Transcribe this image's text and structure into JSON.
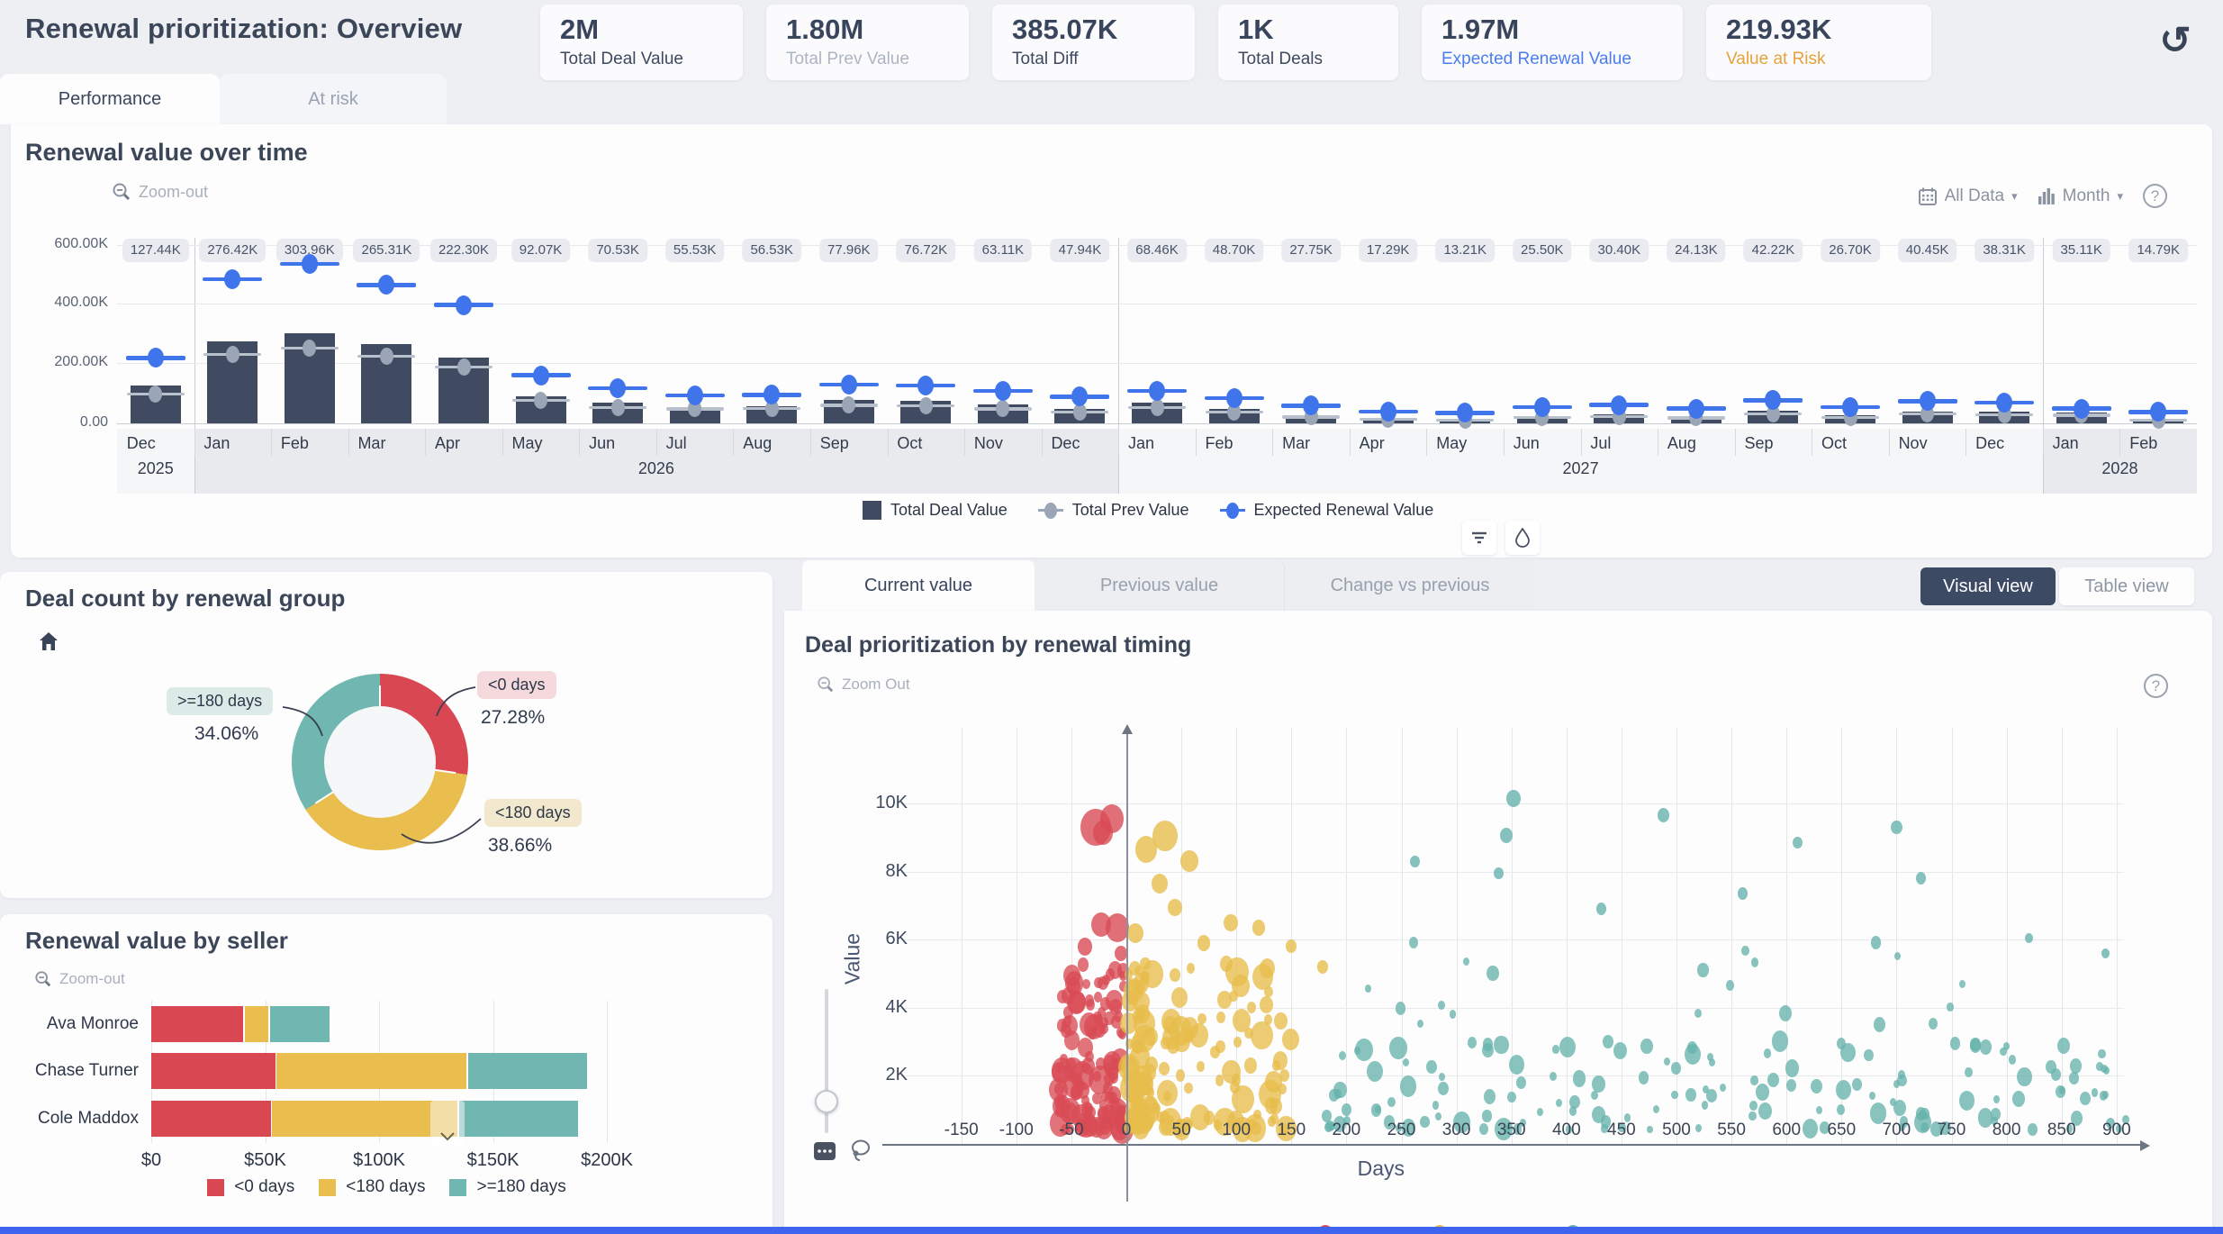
{
  "header": {
    "title": "Renewal prioritization: Overview"
  },
  "kpis": [
    {
      "value": "2M",
      "label": "Total Deal Value",
      "label_color": "#3d4960"
    },
    {
      "value": "1.80M",
      "label": "Total Prev Value",
      "label_color": "#adb5c2"
    },
    {
      "value": "385.07K",
      "label": "Total Diff",
      "label_color": "#3d4960"
    },
    {
      "value": "1K",
      "label": "Total Deals",
      "label_color": "#3d4960"
    },
    {
      "value": "1.97M",
      "label": "Expected Renewal Value",
      "label_color": "#4a7df0"
    },
    {
      "value": "219.93K",
      "label": "Value at Risk",
      "label_color": "#e5a23c"
    }
  ],
  "main_tabs": [
    {
      "label": "Performance",
      "active": true
    },
    {
      "label": "At risk",
      "active": false
    }
  ],
  "scatter_panel": {
    "tabs": [
      {
        "label": "Current value"
      },
      {
        "label": "Previous value"
      },
      {
        "label": "Change vs previous"
      }
    ],
    "views": [
      {
        "label": "Visual view"
      },
      {
        "label": "Table view"
      }
    ]
  },
  "chart_data": [
    {
      "id": "renewal_over_time",
      "type": "bar",
      "title": "Renewal value over time",
      "zoom_label": "Zoom-out",
      "controls": {
        "all_data_label": "All Data",
        "granularity_label": "Month"
      },
      "categories": [
        "Dec",
        "Jan",
        "Feb",
        "Mar",
        "Apr",
        "May",
        "Jun",
        "Jul",
        "Aug",
        "Sep",
        "Oct",
        "Nov",
        "Dec",
        "Jan",
        "Feb",
        "Mar",
        "Apr",
        "May",
        "Jun",
        "Jul",
        "Aug",
        "Sep",
        "Oct",
        "Nov",
        "Dec",
        "Jan",
        "Feb"
      ],
      "year_groups": [
        {
          "label": "2025",
          "count": 1
        },
        {
          "label": "2026",
          "count": 12
        },
        {
          "label": "2027",
          "count": 12
        },
        {
          "label": "2028",
          "count": 2
        }
      ],
      "value_labels": [
        "127.44K",
        "276.42K",
        "303.96K",
        "265.31K",
        "222.30K",
        "92.07K",
        "70.53K",
        "55.53K",
        "56.53K",
        "77.96K",
        "76.72K",
        "63.11K",
        "47.94K",
        "68.46K",
        "48.70K",
        "27.75K",
        "17.29K",
        "13.21K",
        "25.50K",
        "30.40K",
        "24.13K",
        "42.22K",
        "26.70K",
        "40.45K",
        "38.31K",
        "35.11K",
        "14.79K"
      ],
      "y_tick_labels": [
        "600.00K",
        "400.00K",
        "200.00K",
        "0.00"
      ],
      "ylim": [
        0,
        600
      ],
      "series": [
        {
          "name": "Total Deal Value",
          "mark": "bar",
          "color": "#404b61",
          "values": [
            127.44,
            276.42,
            303.96,
            265.31,
            222.3,
            92.07,
            70.53,
            55.53,
            56.53,
            77.96,
            76.72,
            63.11,
            47.94,
            68.46,
            48.7,
            27.75,
            17.29,
            13.21,
            25.5,
            30.4,
            24.13,
            42.22,
            26.7,
            40.45,
            38.31,
            35.11,
            14.79
          ]
        },
        {
          "name": "Total Prev Value",
          "mark": "point",
          "color": "#9aa5b6",
          "values": [
            100,
            233,
            254,
            226,
            190,
            78,
            54,
            50,
            51,
            62,
            60,
            50,
            38,
            54,
            39,
            22,
            14,
            11,
            20,
            24,
            19,
            33,
            21,
            32,
            30,
            28,
            12
          ]
        },
        {
          "name": "Expected Renewal Value",
          "mark": "point",
          "color": "#3f74ea",
          "values": [
            220,
            485,
            537,
            466,
            398,
            162,
            119,
            94,
            96,
            130,
            128,
            110,
            90,
            110,
            85,
            60,
            40,
            35,
            55,
            62,
            50,
            78,
            55,
            75,
            70,
            50,
            38
          ]
        }
      ]
    },
    {
      "id": "deal_count_by_renewal_group",
      "type": "pie",
      "title": "Deal count by renewal group",
      "slices": [
        {
          "label": "<0 days",
          "pct": 27.28,
          "pct_label": "27.28%",
          "color": "#d94852",
          "pill_bg": "#f6d9dc"
        },
        {
          "label": "<180 days",
          "pct": 38.66,
          "pct_label": "38.66%",
          "color": "#e9bd4e",
          "pill_bg": "#f2e8cd"
        },
        {
          "label": ">=180 days",
          "pct": 34.06,
          "pct_label": "34.06%",
          "color": "#6fb7b0",
          "pill_bg": "#dcebe8"
        }
      ]
    },
    {
      "id": "renewal_value_by_seller",
      "type": "bar",
      "stacked": true,
      "horizontal": true,
      "title": "Renewal value by seller",
      "zoom_label": "Zoom-out",
      "categories": [
        "Ava Monroe",
        "Chase Turner",
        "Cole Maddox"
      ],
      "x_tick_labels": [
        "$0",
        "$50K",
        "$100K",
        "$150K",
        "$200K"
      ],
      "xlim": [
        0,
        200
      ],
      "series": [
        {
          "name": "<0 days",
          "color": "#d94852",
          "values": [
            41,
            55,
            53
          ]
        },
        {
          "name": "<180 days",
          "color": "#e9bd4e",
          "values": [
            11,
            84,
            82
          ]
        },
        {
          "name": ">=180 days",
          "color": "#6fb7b0",
          "values": [
            27,
            53,
            53
          ]
        }
      ]
    },
    {
      "id": "deal_prioritization_by_renewal_timing",
      "type": "scatter",
      "title": "Deal prioritization by renewal timing",
      "zoom_label": "Zoom Out",
      "xlabel": "Days",
      "ylabel": "Value",
      "xlim": [
        -200,
        950
      ],
      "ylim": [
        0,
        10800
      ],
      "x_ticks": [
        -150,
        -100,
        -50,
        0,
        50,
        100,
        150,
        200,
        250,
        300,
        350,
        400,
        450,
        500,
        550,
        600,
        650,
        700,
        750,
        800,
        850,
        900
      ],
      "y_tick_labels": [
        "2K",
        "4K",
        "6K",
        "8K",
        "10K"
      ],
      "y_tick_values": [
        2000,
        4000,
        6000,
        8000,
        10000
      ],
      "series": [
        {
          "name": "<0 days",
          "color": "#d84b55",
          "seed": 7,
          "clusters": [
            {
              "x": [
                -62,
                -2
              ],
              "y": [
                420,
                5300
              ],
              "count": 120,
              "xpow": 1.0,
              "ypow": 1.6,
              "size": [
                9,
                26
              ]
            }
          ],
          "outliers": [
            [
              -28,
              9300,
              34
            ],
            [
              -13,
              9550,
              26
            ],
            [
              -21,
              9150,
              22
            ],
            [
              -8,
              6350,
              26
            ],
            [
              -23,
              6450,
              22
            ],
            [
              -38,
              5800,
              16
            ],
            [
              -5,
              5600,
              14
            ]
          ]
        },
        {
          "name": "<180 days",
          "color": "#e7bd4b",
          "seed": 13,
          "clusters": [
            {
              "x": [
                2,
                150
              ],
              "y": [
                420,
                5300
              ],
              "count": 150,
              "xpow": 1.8,
              "ypow": 1.6,
              "size": [
                9,
                26
              ]
            }
          ],
          "outliers": [
            [
              35,
              9050,
              28
            ],
            [
              18,
              8650,
              24
            ],
            [
              57,
              8300,
              20
            ],
            [
              30,
              7650,
              18
            ],
            [
              44,
              6950,
              16
            ],
            [
              95,
              6500,
              16
            ],
            [
              120,
              6350,
              14
            ],
            [
              8,
              6200,
              18
            ],
            [
              150,
              5800,
              12
            ],
            [
              178,
              5200,
              12
            ],
            [
              70,
              5900,
              14
            ]
          ]
        },
        {
          "name": ">=180 days",
          "color": "#66b2ac",
          "seed": 29,
          "clusters": [
            {
              "x": [
                180,
                920
              ],
              "y": [
                420,
                3100
              ],
              "count": 150,
              "xpow": 1.15,
              "ypow": 1.5,
              "size": [
                7,
                20
              ]
            },
            {
              "x": [
                200,
                820
              ],
              "y": [
                3100,
                6300
              ],
              "count": 20,
              "xpow": 1.0,
              "ypow": 1.0,
              "size": [
                7,
                14
              ]
            }
          ],
          "outliers": [
            [
              352,
              10150,
              16
            ],
            [
              488,
              9650,
              13
            ],
            [
              345,
              9050,
              14
            ],
            [
              700,
              9300,
              13
            ],
            [
              610,
              8850,
              11
            ],
            [
              262,
              8300,
              11
            ],
            [
              338,
              7950,
              11
            ],
            [
              722,
              7800,
              11
            ],
            [
              560,
              7350,
              11
            ],
            [
              432,
              6900,
              11
            ],
            [
              890,
              5600,
              9
            ],
            [
              820,
              6050,
              9
            ]
          ]
        }
      ]
    }
  ]
}
